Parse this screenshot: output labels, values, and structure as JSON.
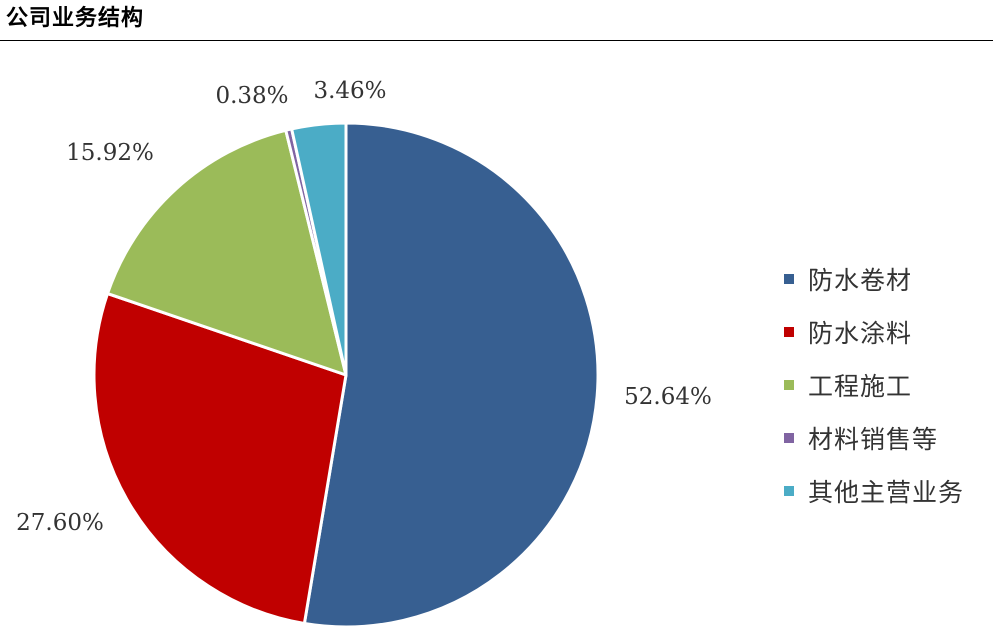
{
  "header": {
    "title": "公司业务结构"
  },
  "chart_data": {
    "type": "pie",
    "title": "",
    "categories": [
      "防水卷材",
      "防水涂料",
      "工程施工",
      "材料销售等",
      "其他主营业务"
    ],
    "values": [
      52.64,
      27.6,
      15.92,
      0.38,
      3.46
    ],
    "value_labels": [
      "52.64%",
      "27.60%",
      "15.92%",
      "0.38%",
      "3.46%"
    ],
    "colors": [
      "#375F91",
      "#C00000",
      "#9BBB59",
      "#8064A2",
      "#4BACC6"
    ],
    "unit": "%",
    "start_angle_deg": 0,
    "direction": "clockwise",
    "legend_position": "right"
  }
}
